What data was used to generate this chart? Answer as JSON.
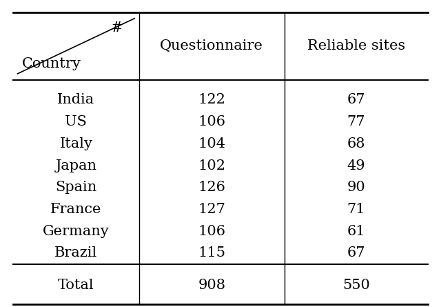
{
  "countries": [
    "India",
    "US",
    "Italy",
    "Japan",
    "Spain",
    "France",
    "Germany",
    "Brazil"
  ],
  "questionnaire": [
    122,
    106,
    104,
    102,
    126,
    127,
    106,
    115
  ],
  "reliable_sites": [
    67,
    77,
    68,
    49,
    90,
    71,
    61,
    67
  ],
  "total_questionnaire": 908,
  "total_reliable_sites": 550,
  "col_headers": [
    "Questionnaire",
    "Reliable sites"
  ],
  "header_country": "Country",
  "header_num": "#",
  "bg_color": "#ffffff",
  "text_color": "#000000",
  "font_size": 15,
  "header_font_size": 15
}
